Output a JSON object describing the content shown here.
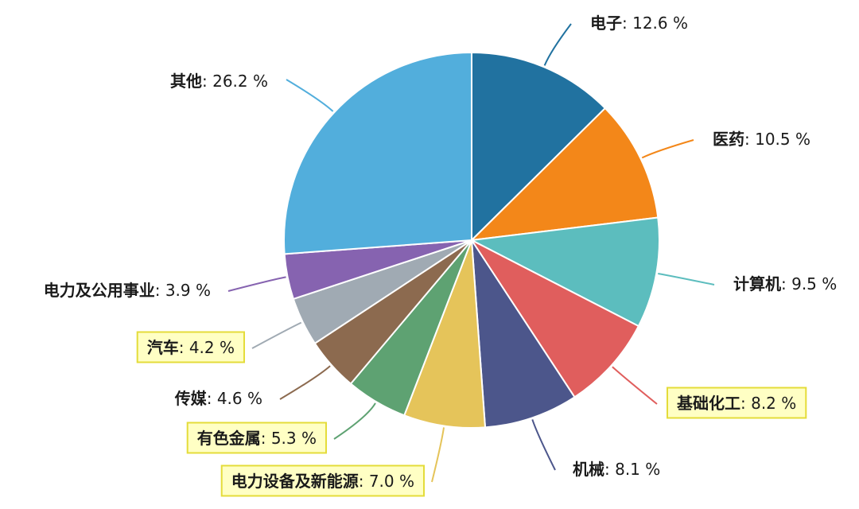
{
  "chart_data": {
    "type": "pie",
    "unit": "%",
    "slices": [
      {
        "label": "电子",
        "value": 12.6,
        "color": "#2172a0",
        "highlighted": false
      },
      {
        "label": "医药",
        "value": 10.5,
        "color": "#f38719",
        "highlighted": false
      },
      {
        "label": "计算机",
        "value": 9.5,
        "color": "#5cbdbe",
        "highlighted": false
      },
      {
        "label": "基础化工",
        "value": 8.2,
        "color": "#e05e5d",
        "highlighted": true
      },
      {
        "label": "机械",
        "value": 8.1,
        "color": "#4c568b",
        "highlighted": false
      },
      {
        "label": "电力设备及新能源",
        "value": 7.0,
        "color": "#e5c45a",
        "highlighted": true
      },
      {
        "label": "有色金属",
        "value": 5.3,
        "color": "#5ea272",
        "highlighted": true
      },
      {
        "label": "传媒",
        "value": 4.6,
        "color": "#8c6a4f",
        "highlighted": false
      },
      {
        "label": "汽车",
        "value": 4.2,
        "color": "#a0aab3",
        "highlighted": true
      },
      {
        "label": "电力及公用事业",
        "value": 3.9,
        "color": "#8663b0",
        "highlighted": false
      },
      {
        "label": "其他",
        "value": 26.2,
        "color": "#52aedc",
        "highlighted": false
      }
    ],
    "highlight_box": {
      "fill": "#ffffc4",
      "border": "#e4dc3a"
    },
    "slice_border": "#ffffff"
  }
}
